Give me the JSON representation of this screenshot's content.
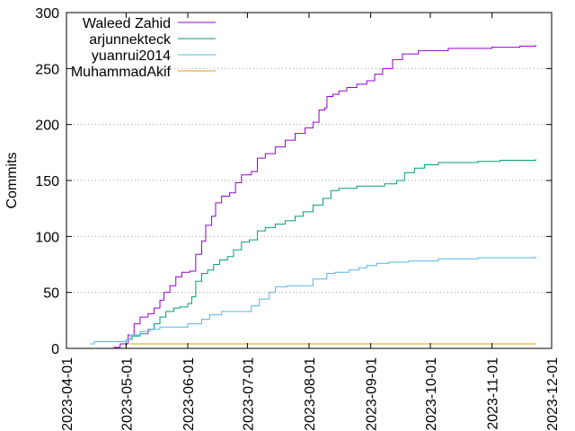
{
  "chart_data": {
    "type": "line",
    "title": "",
    "xlabel": "",
    "ylabel": "Commits",
    "xlim": [
      "2023-04-01",
      "2023-12-01"
    ],
    "ylim": [
      0,
      300
    ],
    "x_ticks": [
      "2023-04-01",
      "2023-05-01",
      "2023-06-01",
      "2023-07-01",
      "2023-08-01",
      "2023-09-01",
      "2023-10-01",
      "2023-11-01",
      "2023-12-01"
    ],
    "y_ticks": [
      0,
      50,
      100,
      150,
      200,
      250,
      300
    ],
    "grid": "horizontal dotted",
    "legend": "top-left",
    "series": [
      {
        "name": "Waleed Zahid",
        "color": "#9400d3",
        "points": [
          [
            "2023-04-20",
            0
          ],
          [
            "2023-04-25",
            1
          ],
          [
            "2023-04-28",
            4
          ],
          [
            "2023-05-02",
            12
          ],
          [
            "2023-05-05",
            22
          ],
          [
            "2023-05-08",
            28
          ],
          [
            "2023-05-12",
            31
          ],
          [
            "2023-05-15",
            36
          ],
          [
            "2023-05-18",
            43
          ],
          [
            "2023-05-20",
            50
          ],
          [
            "2023-05-23",
            56
          ],
          [
            "2023-05-26",
            64
          ],
          [
            "2023-05-29",
            68
          ],
          [
            "2023-06-02",
            69
          ],
          [
            "2023-06-05",
            84
          ],
          [
            "2023-06-08",
            96
          ],
          [
            "2023-06-10",
            110
          ],
          [
            "2023-06-13",
            118
          ],
          [
            "2023-06-15",
            130
          ],
          [
            "2023-06-18",
            136
          ],
          [
            "2023-06-22",
            139
          ],
          [
            "2023-06-25",
            148
          ],
          [
            "2023-06-28",
            155
          ],
          [
            "2023-07-03",
            158
          ],
          [
            "2023-07-06",
            170
          ],
          [
            "2023-07-10",
            174
          ],
          [
            "2023-07-15",
            180
          ],
          [
            "2023-07-20",
            186
          ],
          [
            "2023-07-25",
            192
          ],
          [
            "2023-07-30",
            197
          ],
          [
            "2023-08-03",
            202
          ],
          [
            "2023-08-06",
            213
          ],
          [
            "2023-08-09",
            215
          ],
          [
            "2023-08-10",
            225
          ],
          [
            "2023-08-13",
            227
          ],
          [
            "2023-08-16",
            230
          ],
          [
            "2023-08-20",
            233
          ],
          [
            "2023-08-25",
            236
          ],
          [
            "2023-08-30",
            239
          ],
          [
            "2023-09-03",
            245
          ],
          [
            "2023-09-07",
            250
          ],
          [
            "2023-09-12",
            258
          ],
          [
            "2023-09-17",
            263
          ],
          [
            "2023-09-25",
            266
          ],
          [
            "2023-10-10",
            268
          ],
          [
            "2023-11-01",
            269
          ],
          [
            "2023-11-15",
            270
          ],
          [
            "2023-11-23",
            271
          ]
        ]
      },
      {
        "name": "arjunnekteck",
        "color": "#009e73",
        "points": [
          [
            "2023-04-28",
            0
          ],
          [
            "2023-05-01",
            8
          ],
          [
            "2023-05-04",
            11
          ],
          [
            "2023-05-08",
            13
          ],
          [
            "2023-05-12",
            17
          ],
          [
            "2023-05-15",
            22
          ],
          [
            "2023-05-18",
            28
          ],
          [
            "2023-05-21",
            33
          ],
          [
            "2023-05-25",
            36
          ],
          [
            "2023-05-28",
            37
          ],
          [
            "2023-06-01",
            40
          ],
          [
            "2023-06-03",
            46
          ],
          [
            "2023-06-05",
            60
          ],
          [
            "2023-06-08",
            67
          ],
          [
            "2023-06-11",
            70
          ],
          [
            "2023-06-14",
            75
          ],
          [
            "2023-06-17",
            79
          ],
          [
            "2023-06-21",
            82
          ],
          [
            "2023-06-24",
            88
          ],
          [
            "2023-06-28",
            95
          ],
          [
            "2023-07-02",
            97
          ],
          [
            "2023-07-06",
            105
          ],
          [
            "2023-07-10",
            108
          ],
          [
            "2023-07-15",
            111
          ],
          [
            "2023-07-20",
            114
          ],
          [
            "2023-07-25",
            118
          ],
          [
            "2023-07-29",
            122
          ],
          [
            "2023-08-03",
            128
          ],
          [
            "2023-08-08",
            134
          ],
          [
            "2023-08-12",
            141
          ],
          [
            "2023-08-16",
            143
          ],
          [
            "2023-08-25",
            145
          ],
          [
            "2023-09-08",
            147
          ],
          [
            "2023-09-14",
            150
          ],
          [
            "2023-09-18",
            157
          ],
          [
            "2023-09-23",
            161
          ],
          [
            "2023-09-28",
            164
          ],
          [
            "2023-10-05",
            166
          ],
          [
            "2023-10-25",
            167
          ],
          [
            "2023-11-05",
            168
          ],
          [
            "2023-11-23",
            169
          ]
        ]
      },
      {
        "name": "yuanrui2014",
        "color": "#56b4e9",
        "points": [
          [
            "2023-04-13",
            4
          ],
          [
            "2023-04-15",
            6
          ],
          [
            "2023-05-01",
            8
          ],
          [
            "2023-05-03",
            12
          ],
          [
            "2023-05-08",
            15
          ],
          [
            "2023-05-13",
            17
          ],
          [
            "2023-05-18",
            19
          ],
          [
            "2023-06-01",
            22
          ],
          [
            "2023-06-08",
            26
          ],
          [
            "2023-06-12",
            30
          ],
          [
            "2023-06-18",
            33
          ],
          [
            "2023-07-03",
            38
          ],
          [
            "2023-07-07",
            44
          ],
          [
            "2023-07-12",
            50
          ],
          [
            "2023-07-15",
            55
          ],
          [
            "2023-07-21",
            56
          ],
          [
            "2023-08-03",
            62
          ],
          [
            "2023-08-10",
            67
          ],
          [
            "2023-08-14",
            68
          ],
          [
            "2023-08-21",
            70
          ],
          [
            "2023-08-26",
            72
          ],
          [
            "2023-08-30",
            74
          ],
          [
            "2023-09-04",
            76
          ],
          [
            "2023-09-10",
            77
          ],
          [
            "2023-09-20",
            78
          ],
          [
            "2023-10-05",
            80
          ],
          [
            "2023-10-25",
            81
          ],
          [
            "2023-11-23",
            82
          ]
        ]
      },
      {
        "name": "MuhammadAkif",
        "color": "#e69f00",
        "points": [
          [
            "2023-05-03",
            4
          ],
          [
            "2023-11-23",
            4
          ]
        ]
      }
    ]
  }
}
